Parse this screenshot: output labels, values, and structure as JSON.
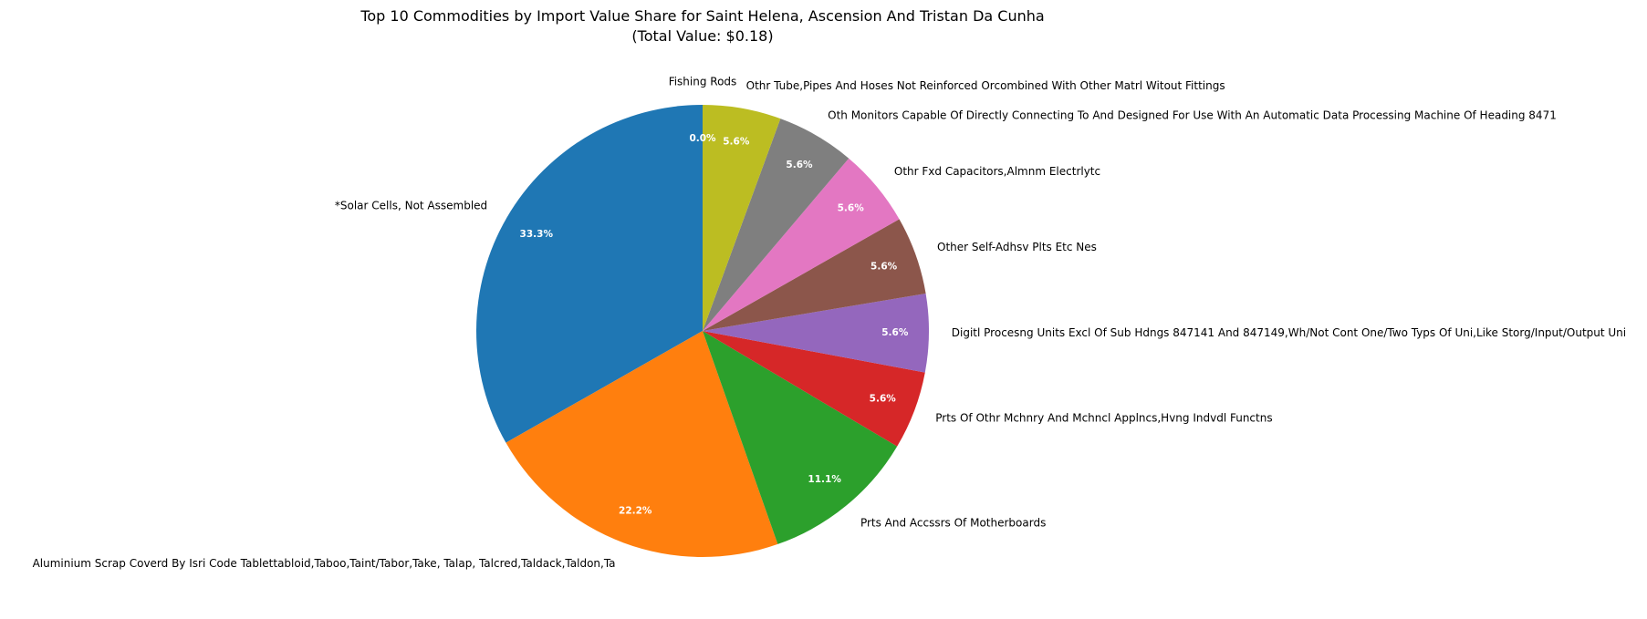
{
  "chart_data": {
    "type": "pie",
    "title": "Top 10 Commodities by Import Value Share for Saint Helena, Ascension And Tristan Da Cunha",
    "subtitle": "(Total Value: $0.18)",
    "start_angle_deg": 90,
    "direction": "counterclockwise",
    "slices": [
      {
        "label": "Fishing Rods",
        "value": 0.0,
        "pct_label": "0.0%",
        "color": "#1f77b4"
      },
      {
        "label": "*Solar Cells, Not Assembled",
        "value": 33.3,
        "pct_label": "33.3%",
        "color": "#1f77b4"
      },
      {
        "label": "Aluminium Scrap Coverd By Isri Code Tablettabloid,Taboo,Taint/Tabor,Take, Talap, Talcred,Taldack,Taldon,Ta",
        "value": 22.2,
        "pct_label": "22.2%",
        "color": "#ff7f0e"
      },
      {
        "label": "Prts And Accssrs Of Motherboards",
        "value": 11.1,
        "pct_label": "11.1%",
        "color": "#2ca02c"
      },
      {
        "label": "Prts Of Othr Mchnry And Mchncl Applncs,Hvng Indvdl Functns",
        "value": 5.6,
        "pct_label": "5.6%",
        "color": "#d62728"
      },
      {
        "label": "Digitl Procesng Units Excl Of Sub Hdngs 847141 And 847149,Wh/Not Cont One/Two Typs Of Uni,Like Storg/Input/Output Uni",
        "value": 5.6,
        "pct_label": "5.6%",
        "color": "#9467bd"
      },
      {
        "label": "Other Self-Adhsv Plts Etc Nes",
        "value": 5.6,
        "pct_label": "5.6%",
        "color": "#8c564b"
      },
      {
        "label": "Othr Fxd Capacitors,Almnm Electrlytc",
        "value": 5.6,
        "pct_label": "5.6%",
        "color": "#e377c2"
      },
      {
        "label": "Oth Monitors Capable Of Directly Connecting To And Designed For Use With An Automatic Data Processing Machine Of Heading 8471",
        "value": 5.6,
        "pct_label": "5.6%",
        "color": "#7f7f7f"
      },
      {
        "label": "Othr Tube,Pipes And Hoses Not Reinforced Orcombined With Other Matrl Witout Fittings",
        "value": 5.6,
        "pct_label": "5.6%",
        "color": "#bcbd22"
      }
    ]
  }
}
